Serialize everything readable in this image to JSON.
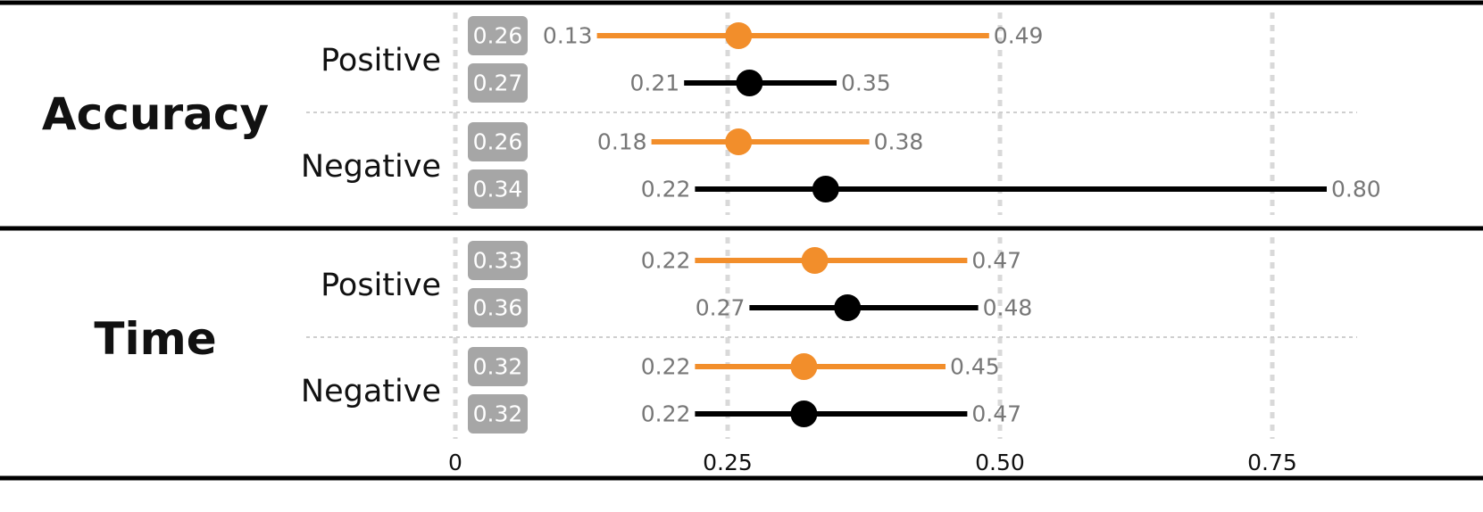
{
  "chart_data": {
    "type": "forest",
    "x_ticks": [
      {
        "value": 0,
        "label": "0"
      },
      {
        "value": 0.25,
        "label": "0.25"
      },
      {
        "value": 0.5,
        "label": "0.50"
      },
      {
        "value": 0.75,
        "label": "0.75"
      }
    ],
    "xlim": [
      0,
      0.85
    ],
    "grid": true,
    "colors": {
      "first_series": "#F28E2B",
      "second_series": "#000000",
      "badge": "#A6A6A6",
      "ci_text": "#777777"
    },
    "groups": [
      {
        "label": "Accuracy",
        "conditions": [
          {
            "label": "Positive",
            "rows": [
              {
                "mean": 0.26,
                "mean_label": "0.26",
                "low": 0.13,
                "low_label": "0.13",
                "high": 0.49,
                "high_label": "0.49",
                "color": "#F28E2B"
              },
              {
                "mean": 0.27,
                "mean_label": "0.27",
                "low": 0.21,
                "low_label": "0.21",
                "high": 0.35,
                "high_label": "0.35",
                "color": "#000000"
              }
            ]
          },
          {
            "label": "Negative",
            "rows": [
              {
                "mean": 0.26,
                "mean_label": "0.26",
                "low": 0.18,
                "low_label": "0.18",
                "high": 0.38,
                "high_label": "0.38",
                "color": "#F28E2B"
              },
              {
                "mean": 0.34,
                "mean_label": "0.34",
                "low": 0.22,
                "low_label": "0.22",
                "high": 0.8,
                "high_label": "0.80",
                "color": "#000000"
              }
            ]
          }
        ]
      },
      {
        "label": "Time",
        "conditions": [
          {
            "label": "Positive",
            "rows": [
              {
                "mean": 0.33,
                "mean_label": "0.33",
                "low": 0.22,
                "low_label": "0.22",
                "high": 0.47,
                "high_label": "0.47",
                "color": "#F28E2B"
              },
              {
                "mean": 0.36,
                "mean_label": "0.36",
                "low": 0.27,
                "low_label": "0.27",
                "high": 0.48,
                "high_label": "0.48",
                "color": "#000000"
              }
            ]
          },
          {
            "label": "Negative",
            "rows": [
              {
                "mean": 0.32,
                "mean_label": "0.32",
                "low": 0.22,
                "low_label": "0.22",
                "high": 0.45,
                "high_label": "0.45",
                "color": "#F28E2B"
              },
              {
                "mean": 0.32,
                "mean_label": "0.32",
                "low": 0.22,
                "low_label": "0.22",
                "high": 0.47,
                "high_label": "0.47",
                "color": "#000000"
              }
            ]
          }
        ]
      }
    ]
  }
}
